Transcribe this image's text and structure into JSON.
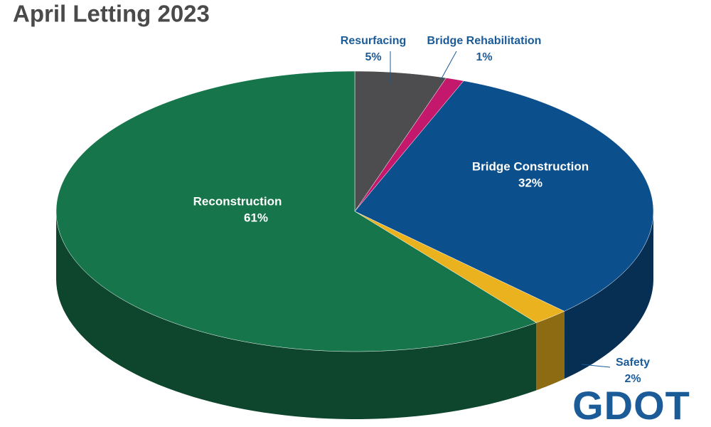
{
  "chart_data": {
    "type": "pie",
    "title": "April Letting 2023",
    "categories": [
      "Resurfacing",
      "Bridge Rehabilitation",
      "Bridge Construction",
      "Safety",
      "Reconstruction"
    ],
    "values": [
      5,
      1,
      32,
      2,
      61
    ],
    "value_labels": [
      "5%",
      "1%",
      "32%",
      "2%",
      "61%"
    ],
    "colors": [
      "#4d4c4f",
      "#c4186c",
      "#0b4f8c",
      "#e9b21e",
      "#16754a"
    ]
  },
  "logo": "GDOT"
}
